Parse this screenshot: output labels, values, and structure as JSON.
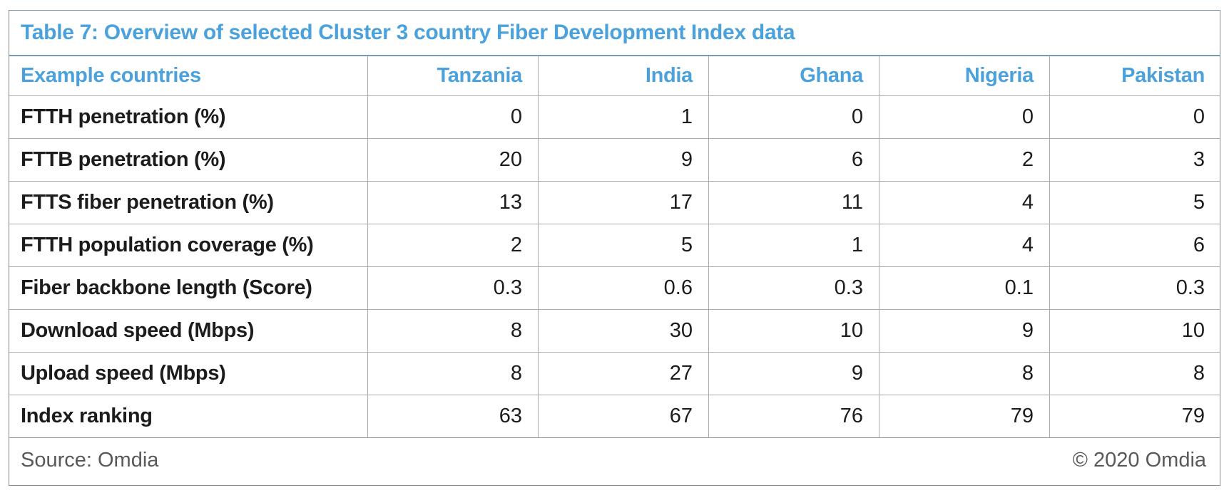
{
  "title": "Table 7: Overview of selected Cluster 3 country Fiber Development Index data",
  "colors": {
    "accent_blue": "#4aa1dc",
    "text_dark": "#1c1c1c",
    "text_gray": "#595959",
    "grid_gray": "#ababab",
    "outer_border": "#8a8a8a",
    "title_rule_blue": "#7a9bb4",
    "background": "#ffffff"
  },
  "table": {
    "header": {
      "label_column": "Example countries",
      "countries": [
        "Tanzania",
        "India",
        "Ghana",
        "Nigeria",
        "Pakistan"
      ]
    },
    "rows": [
      {
        "label": "FTTH penetration (%)",
        "values": [
          "0",
          "1",
          "0",
          "0",
          "0"
        ]
      },
      {
        "label": "FTTB penetration (%)",
        "values": [
          "20",
          "9",
          "6",
          "2",
          "3"
        ]
      },
      {
        "label": "FTTS fiber penetration (%)",
        "values": [
          "13",
          "17",
          "11",
          "4",
          "5"
        ]
      },
      {
        "label": "FTTH population coverage (%)",
        "values": [
          "2",
          "5",
          "1",
          "4",
          "6"
        ]
      },
      {
        "label": "Fiber backbone length (Score)",
        "values": [
          "0.3",
          "0.6",
          "0.3",
          "0.1",
          "0.3"
        ]
      },
      {
        "label": "Download speed (Mbps)",
        "values": [
          "8",
          "30",
          "10",
          "9",
          "10"
        ]
      },
      {
        "label": "Upload speed (Mbps)",
        "values": [
          "8",
          "27",
          "9",
          "8",
          "8"
        ]
      },
      {
        "label": "Index ranking",
        "values": [
          "63",
          "67",
          "76",
          "79",
          "79"
        ]
      }
    ],
    "footer": {
      "source": "Source: Omdia",
      "copyright": "© 2020 Omdia"
    }
  },
  "chart_data": {
    "type": "table",
    "title": "Table 7: Overview of selected Cluster 3 country Fiber Development Index data",
    "columns": [
      "Example countries",
      "Tanzania",
      "India",
      "Ghana",
      "Nigeria",
      "Pakistan"
    ],
    "rows": [
      [
        "FTTH penetration (%)",
        0,
        1,
        0,
        0,
        0
      ],
      [
        "FTTB penetration (%)",
        20,
        9,
        6,
        2,
        3
      ],
      [
        "FTTS fiber penetration (%)",
        13,
        17,
        11,
        4,
        5
      ],
      [
        "FTTH population coverage (%)",
        2,
        5,
        1,
        4,
        6
      ],
      [
        "Fiber backbone length (Score)",
        0.3,
        0.6,
        0.3,
        0.1,
        0.3
      ],
      [
        "Download speed (Mbps)",
        8,
        30,
        10,
        9,
        10
      ],
      [
        "Upload speed (Mbps)",
        8,
        27,
        9,
        8,
        8
      ],
      [
        "Index ranking",
        63,
        67,
        76,
        79,
        79
      ]
    ],
    "source": "Source: Omdia",
    "copyright": "© 2020 Omdia"
  }
}
